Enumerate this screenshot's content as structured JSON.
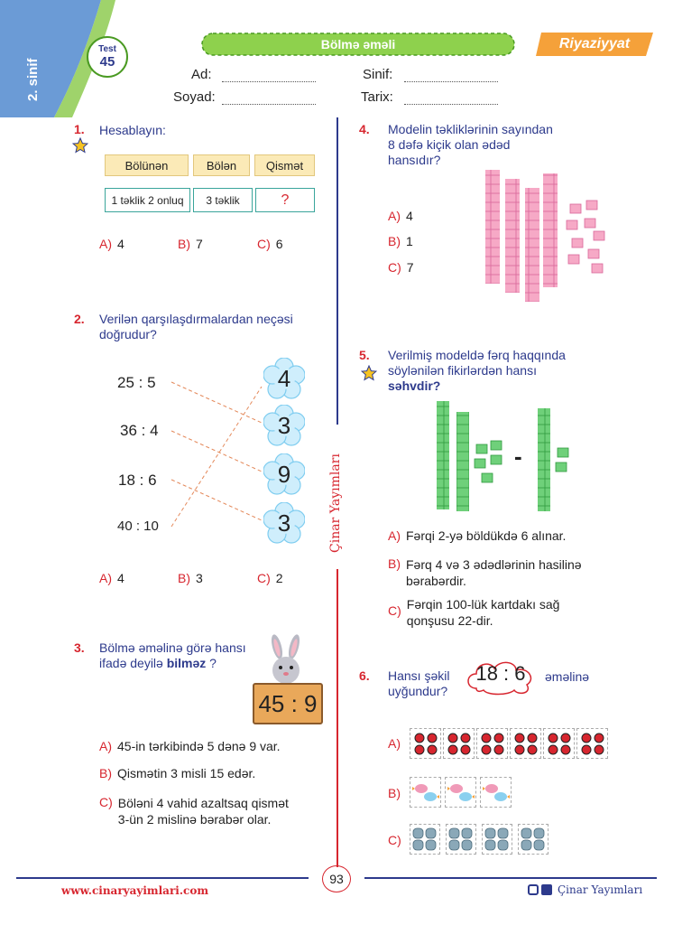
{
  "header": {
    "grade": "2. sinif",
    "test_label": "Test",
    "test_number": "45",
    "topic": "Bölmə əməli",
    "subject": "Riyaziyyat",
    "fields": [
      {
        "label": "Ad:"
      },
      {
        "label": "Soyad:"
      },
      {
        "label": "Sinif:"
      },
      {
        "label": "Tarix:"
      }
    ]
  },
  "q1": {
    "number": "1.",
    "text": "Hesablayın:",
    "headers": [
      "Bölünən",
      "Bölən",
      "Qismət"
    ],
    "values": [
      "1 təklik 2 onluq",
      "3 təklik",
      "?"
    ],
    "options": [
      {
        "letter": "A)",
        "text": "4"
      },
      {
        "letter": "B)",
        "text": "7"
      },
      {
        "letter": "C)",
        "text": "6"
      }
    ]
  },
  "q2": {
    "number": "2.",
    "text_lines": [
      "Verilən qarşılaşdırmalardan neçəsi",
      "doğrudur?"
    ],
    "left": [
      "25 : 5",
      "36 : 4",
      "18 : 6",
      "40 : 10"
    ],
    "right": [
      "4",
      "3",
      "9",
      "3"
    ],
    "options": [
      {
        "letter": "A)",
        "text": "4"
      },
      {
        "letter": "B)",
        "text": "3"
      },
      {
        "letter": "C)",
        "text": "2"
      }
    ]
  },
  "q3": {
    "number": "3.",
    "text_line1": "Bölmə əməlinə görə hansı",
    "text_line2_a": "ifadə deyilə ",
    "text_line2_b": "bilməz",
    "text_line2_c": " ?",
    "sign": "45 : 9",
    "options": [
      {
        "letter": "A)",
        "lines": [
          "45-in tərkibində 5 dənə 9 var."
        ]
      },
      {
        "letter": "B)",
        "lines": [
          "Qismətin 3 misli 15 edər."
        ]
      },
      {
        "letter": "C)",
        "lines": [
          "Böləni 4 vahid azaltsaq qismət",
          "3-ün 2 mislinə bərabər olar."
        ]
      }
    ]
  },
  "q4": {
    "number": "4.",
    "text_lines": [
      "Modelin təkliklərinin sayından",
      "8 dəfə kiçik olan ədəd",
      "hansıdır?"
    ],
    "options": [
      {
        "letter": "A)",
        "text": "4"
      },
      {
        "letter": "B)",
        "text": "1"
      },
      {
        "letter": "C)",
        "text": "7"
      }
    ]
  },
  "q5": {
    "number": "5.",
    "text_lines": [
      "Verilmiş modeldə fərq haqqında",
      "söylənilən fikirlərdən hansı"
    ],
    "text_bold": "səhvdir?",
    "minus": "-",
    "options": [
      {
        "letter": "A)",
        "lines": [
          "Fərqi 2-yə böldükdə 6 alınar."
        ]
      },
      {
        "letter": "B)",
        "lines": [
          "Fərq 4 və 3 ədədlərinin hasilinə",
          "bərabərdir."
        ]
      },
      {
        "letter": "C)",
        "lines": [
          "Fərqin 100-lük kartdakı sağ",
          "qonşusu 22-dir."
        ]
      }
    ]
  },
  "q6": {
    "number": "6.",
    "text_lines": [
      "Hansı şəkil",
      "uyğundur?"
    ],
    "expression": "18 : 6",
    "suffix": "əməlinə",
    "options": [
      {
        "letter": "A)"
      },
      {
        "letter": "B)"
      },
      {
        "letter": "C)"
      }
    ]
  },
  "footer": {
    "website": "www.cinaryayimlari.com",
    "page": "93",
    "publisher": "Çinar Yayımları",
    "vertical_brand": "Çinar Yayımları"
  }
}
